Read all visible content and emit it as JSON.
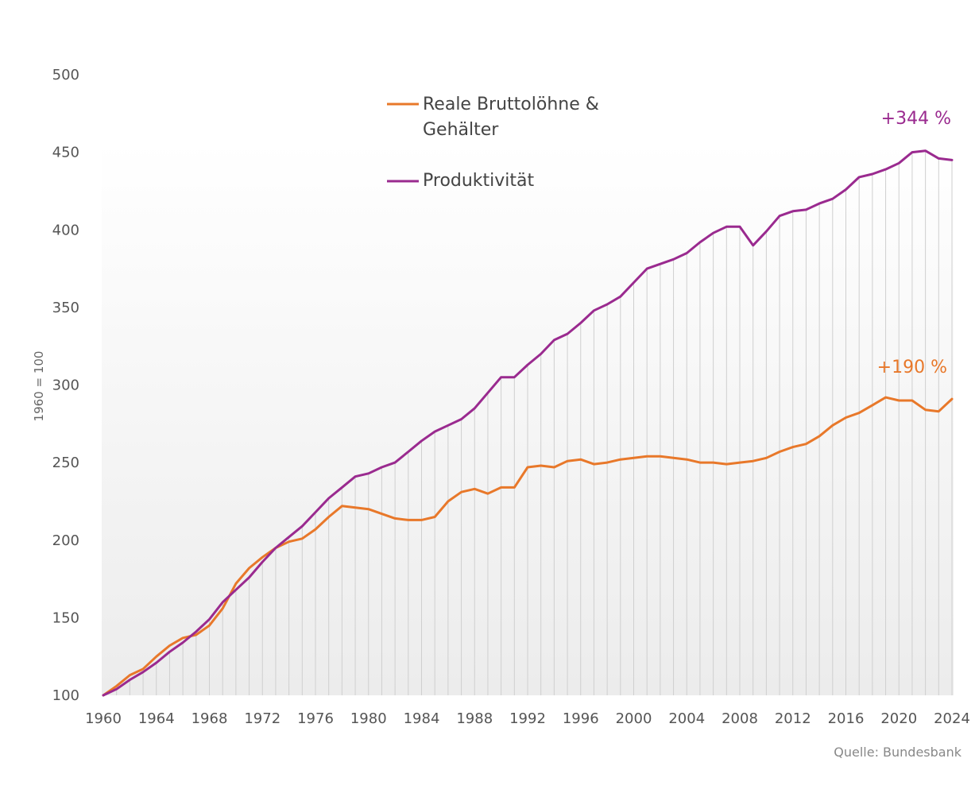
{
  "chart_data": {
    "type": "line",
    "ylabel": "1960 = 100",
    "ylim": [
      100,
      500
    ],
    "yticks": [
      100,
      150,
      200,
      250,
      300,
      350,
      400,
      450,
      500
    ],
    "xlim": [
      1960,
      2024
    ],
    "xticks": [
      1960,
      1964,
      1968,
      1972,
      1976,
      1980,
      1984,
      1988,
      1992,
      1996,
      2000,
      2004,
      2008,
      2012,
      2016,
      2020,
      2024
    ],
    "x": [
      1960,
      1961,
      1962,
      1963,
      1964,
      1965,
      1966,
      1967,
      1968,
      1969,
      1970,
      1971,
      1972,
      1973,
      1974,
      1975,
      1976,
      1977,
      1978,
      1979,
      1980,
      1981,
      1982,
      1983,
      1984,
      1985,
      1986,
      1987,
      1988,
      1989,
      1990,
      1991,
      1992,
      1993,
      1994,
      1995,
      1996,
      1997,
      1998,
      1999,
      2000,
      2001,
      2002,
      2003,
      2004,
      2005,
      2006,
      2007,
      2008,
      2009,
      2010,
      2011,
      2012,
      2013,
      2014,
      2015,
      2016,
      2017,
      2018,
      2019,
      2020,
      2021,
      2022,
      2023,
      2024
    ],
    "series": [
      {
        "name": "Reale Bruttolöhne & Gehälter",
        "color": "#e8782a",
        "values": [
          100,
          106,
          113,
          117,
          125,
          132,
          137,
          139,
          145,
          156,
          172,
          182,
          189,
          195,
          199,
          201,
          207,
          215,
          222,
          221,
          220,
          217,
          214,
          213,
          213,
          215,
          225,
          231,
          233,
          230,
          234,
          234,
          247,
          248,
          247,
          251,
          252,
          249,
          250,
          252,
          253,
          254,
          254,
          253,
          252,
          250,
          250,
          249,
          250,
          251,
          253,
          257,
          260,
          262,
          267,
          274,
          279,
          282,
          287,
          292,
          290,
          290,
          284,
          283,
          291
        ]
      },
      {
        "name": "Produktivität",
        "color": "#9a2a8f",
        "values": [
          100,
          104,
          110,
          115,
          121,
          128,
          134,
          141,
          149,
          160,
          168,
          176,
          186,
          195,
          202,
          209,
          218,
          227,
          234,
          241,
          243,
          247,
          250,
          257,
          264,
          270,
          274,
          278,
          285,
          295,
          305,
          305,
          313,
          320,
          329,
          333,
          340,
          348,
          352,
          357,
          366,
          375,
          378,
          381,
          385,
          392,
          398,
          402,
          402,
          390,
          399,
          409,
          412,
          413,
          417,
          420,
          426,
          434,
          436,
          439,
          443,
          450,
          451,
          446,
          445
        ]
      }
    ],
    "legend": [
      "Reale Bruttolöhne &",
      "Gehälter",
      "Produktivität"
    ],
    "annotations": [
      {
        "text": "+344 %",
        "series": "Produktivität",
        "color": "#9a2a8f"
      },
      {
        "text": "+190 %",
        "series": "Reale Bruttolöhne & Gehälter",
        "color": "#e8782a"
      }
    ],
    "source": "Quelle: Bundesbank"
  }
}
